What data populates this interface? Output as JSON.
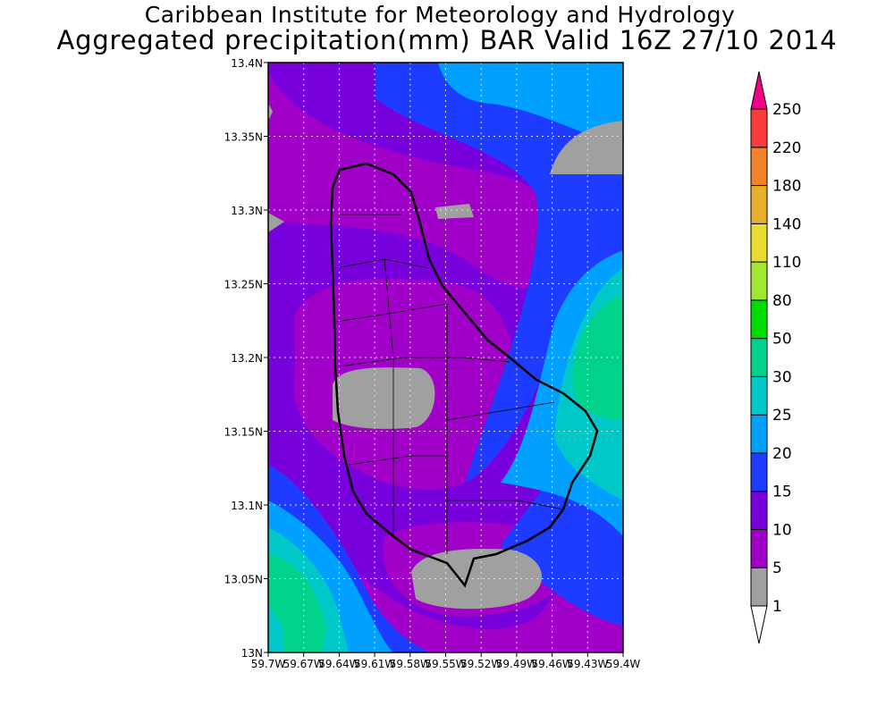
{
  "title_line1": "Caribbean Institute for Meteorology and Hydrology",
  "title_line2": "Aggregated precipitation(mm) BAR Valid 16Z 27/10 2014",
  "chart_data": {
    "type": "heatmap",
    "title": "Aggregated precipitation(mm) BAR Valid 16Z 27/10 2014",
    "xlim": [
      -59.7,
      -59.4
    ],
    "ylim": [
      13.0,
      13.4
    ],
    "x_ticks": [
      "59.7W",
      "59.67W",
      "59.64W",
      "59.61W",
      "59.58W",
      "59.55W",
      "59.52W",
      "59.49W",
      "59.46W",
      "59.43W",
      "59.4W"
    ],
    "y_ticks": [
      "13N",
      "13.05N",
      "13.1N",
      "13.15N",
      "13.2N",
      "13.25N",
      "13.3N",
      "13.35N",
      "13.4N"
    ],
    "grid": true,
    "colorbar": {
      "labels": [
        "1",
        "5",
        "10",
        "15",
        "20",
        "25",
        "30",
        "50",
        "80",
        "110",
        "140",
        "180",
        "220",
        "250"
      ],
      "colors": [
        "#a0a0a0",
        "#a000c8",
        "#7800dc",
        "#1e3cff",
        "#00a0ff",
        "#00c8c8",
        "#00d28c",
        "#00dc00",
        "#a0e632",
        "#e6dc32",
        "#e6af2d",
        "#f08228",
        "#fa3c3c",
        "#f00082"
      ],
      "placement": "right"
    }
  }
}
